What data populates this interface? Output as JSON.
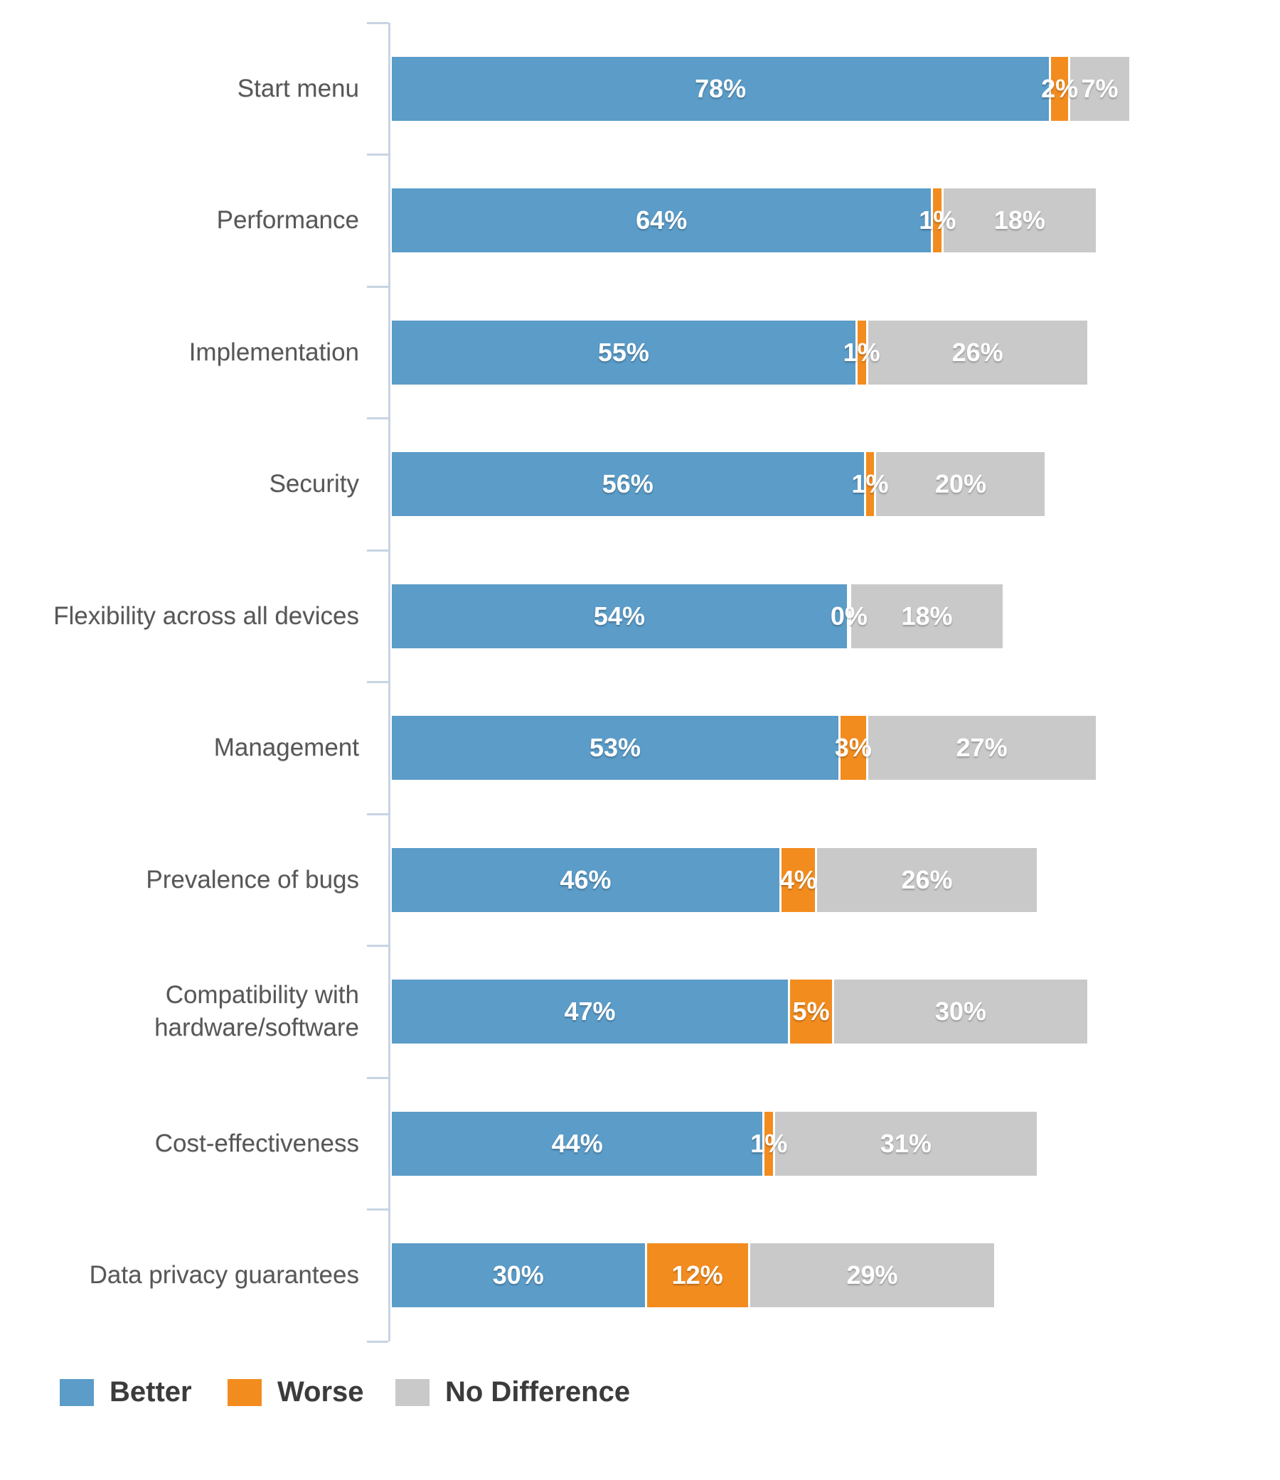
{
  "chart_data": {
    "type": "bar",
    "orientation": "horizontal",
    "stacked": true,
    "title": "",
    "xlabel": "",
    "ylabel": "",
    "xlim": [
      0,
      100
    ],
    "grid": false,
    "legend_position": "bottom-left",
    "value_suffix": "%",
    "categories": [
      "Start menu",
      "Performance",
      "Implementation",
      "Security",
      "Flexibility across all devices",
      "Management",
      "Prevalence of bugs",
      "Compatibility with\nhardware/software",
      "Cost-effectiveness",
      "Data privacy guarantees"
    ],
    "series": [
      {
        "name": "Better",
        "color": "#5b9cc8",
        "values": [
          78,
          64,
          55,
          56,
          54,
          53,
          46,
          47,
          44,
          30
        ]
      },
      {
        "name": "Worse",
        "color": "#f28c1f",
        "values": [
          2,
          1,
          1,
          1,
          0,
          3,
          4,
          5,
          1,
          12
        ]
      },
      {
        "name": "No Difference",
        "color": "#c9c9c9",
        "values": [
          7,
          18,
          26,
          20,
          18,
          27,
          26,
          30,
          31,
          29
        ]
      }
    ],
    "data_labels": [
      [
        "78%",
        "2%",
        "7%"
      ],
      [
        "64%",
        "1%",
        "18%"
      ],
      [
        "55%",
        "1%",
        "26%"
      ],
      [
        "56%",
        "1%",
        "20%"
      ],
      [
        "54%",
        "0%",
        "18%"
      ],
      [
        "53%",
        "3%",
        "27%"
      ],
      [
        "46%",
        "4%",
        "26%"
      ],
      [
        "47%",
        "5%",
        "30%"
      ],
      [
        "44%",
        "1%",
        "31%"
      ],
      [
        "30%",
        "12%",
        "29%"
      ]
    ]
  },
  "colors": {
    "better": "#5b9cc8",
    "worse": "#f28c1f",
    "no_difference": "#c9c9c9",
    "axis": "#c7d4e2",
    "category_text": "#575757",
    "value_text": "#ffffff",
    "legend_text": "#3b3b3b",
    "background": "#ffffff"
  },
  "legend": {
    "items": [
      {
        "label": "Better"
      },
      {
        "label": "Worse"
      },
      {
        "label": "No Difference"
      }
    ]
  }
}
